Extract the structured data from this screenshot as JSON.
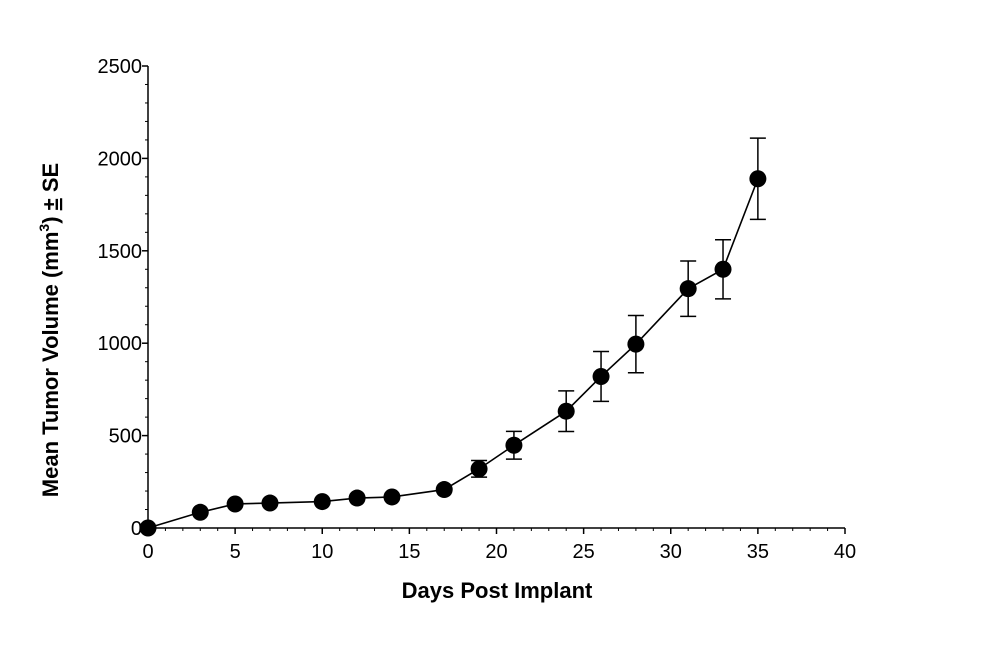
{
  "chart_data": {
    "type": "line",
    "title": "",
    "xlabel": "Days Post Implant",
    "ylabel": {
      "prefix": "Mean Tumor Volume (mm",
      "superscript": "3",
      "suffix_pm": "±",
      "suffix": " SE"
    },
    "xlim": [
      0,
      40
    ],
    "ylim": [
      0,
      2500
    ],
    "xticks": [
      0,
      5,
      10,
      15,
      20,
      25,
      30,
      35,
      40
    ],
    "yticks": [
      0,
      500,
      1000,
      1500,
      2000,
      2500
    ],
    "grid": false,
    "series": [
      {
        "x": [
          0,
          3,
          5,
          7,
          10,
          12,
          14,
          17,
          19,
          21,
          24,
          26,
          28,
          31,
          33,
          35
        ],
        "y": [
          0,
          85,
          130,
          135,
          143,
          162,
          168,
          208,
          320,
          448,
          632,
          820,
          995,
          1295,
          1400,
          1890
        ],
        "error": [
          0,
          0,
          0,
          0,
          0,
          0,
          0,
          0,
          45,
          75,
          110,
          135,
          155,
          150,
          160,
          220
        ]
      }
    ]
  }
}
